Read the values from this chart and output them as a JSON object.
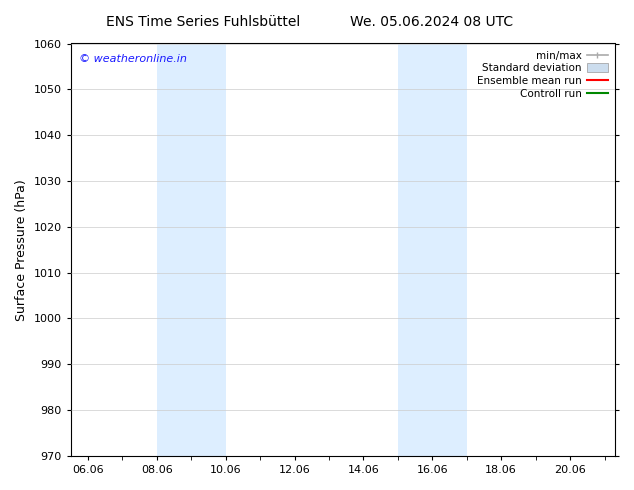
{
  "title_left": "ENS Time Series Fuhlsbüttel",
  "title_right": "We. 05.06.2024 08 UTC",
  "ylabel": "Surface Pressure (hPa)",
  "ylim": [
    970,
    1060
  ],
  "yticks": [
    970,
    980,
    990,
    1000,
    1010,
    1020,
    1030,
    1040,
    1050,
    1060
  ],
  "xlim_start": 5.5,
  "xlim_end": 21.3,
  "xtick_labels": [
    "06.06",
    "08.06",
    "10.06",
    "12.06",
    "14.06",
    "16.06",
    "18.06",
    "20.06"
  ],
  "xtick_positions": [
    6.0,
    8.0,
    10.0,
    12.0,
    14.0,
    16.0,
    18.0,
    20.0
  ],
  "shaded_bands": [
    {
      "x_start": 8.0,
      "x_end": 10.0
    },
    {
      "x_start": 15.0,
      "x_end": 17.0
    }
  ],
  "shaded_color": "#ddeeff",
  "background_color": "#ffffff",
  "watermark_text": "© weatheronline.in",
  "watermark_color": "#1a1aff",
  "legend_entries": [
    {
      "label": "min/max",
      "color": "#aaaaaa",
      "style": "hline"
    },
    {
      "label": "Standard deviation",
      "color": "#ccddee",
      "style": "patch"
    },
    {
      "label": "Ensemble mean run",
      "color": "#ff0000",
      "style": "line"
    },
    {
      "label": "Controll run",
      "color": "#008800",
      "style": "line"
    }
  ],
  "grid_color": "#cccccc",
  "spine_color": "#000000",
  "tick_color": "#000000",
  "font_color": "#000000",
  "title_fontsize": 10,
  "ylabel_fontsize": 9,
  "tick_fontsize": 8,
  "legend_fontsize": 7.5,
  "watermark_fontsize": 8
}
